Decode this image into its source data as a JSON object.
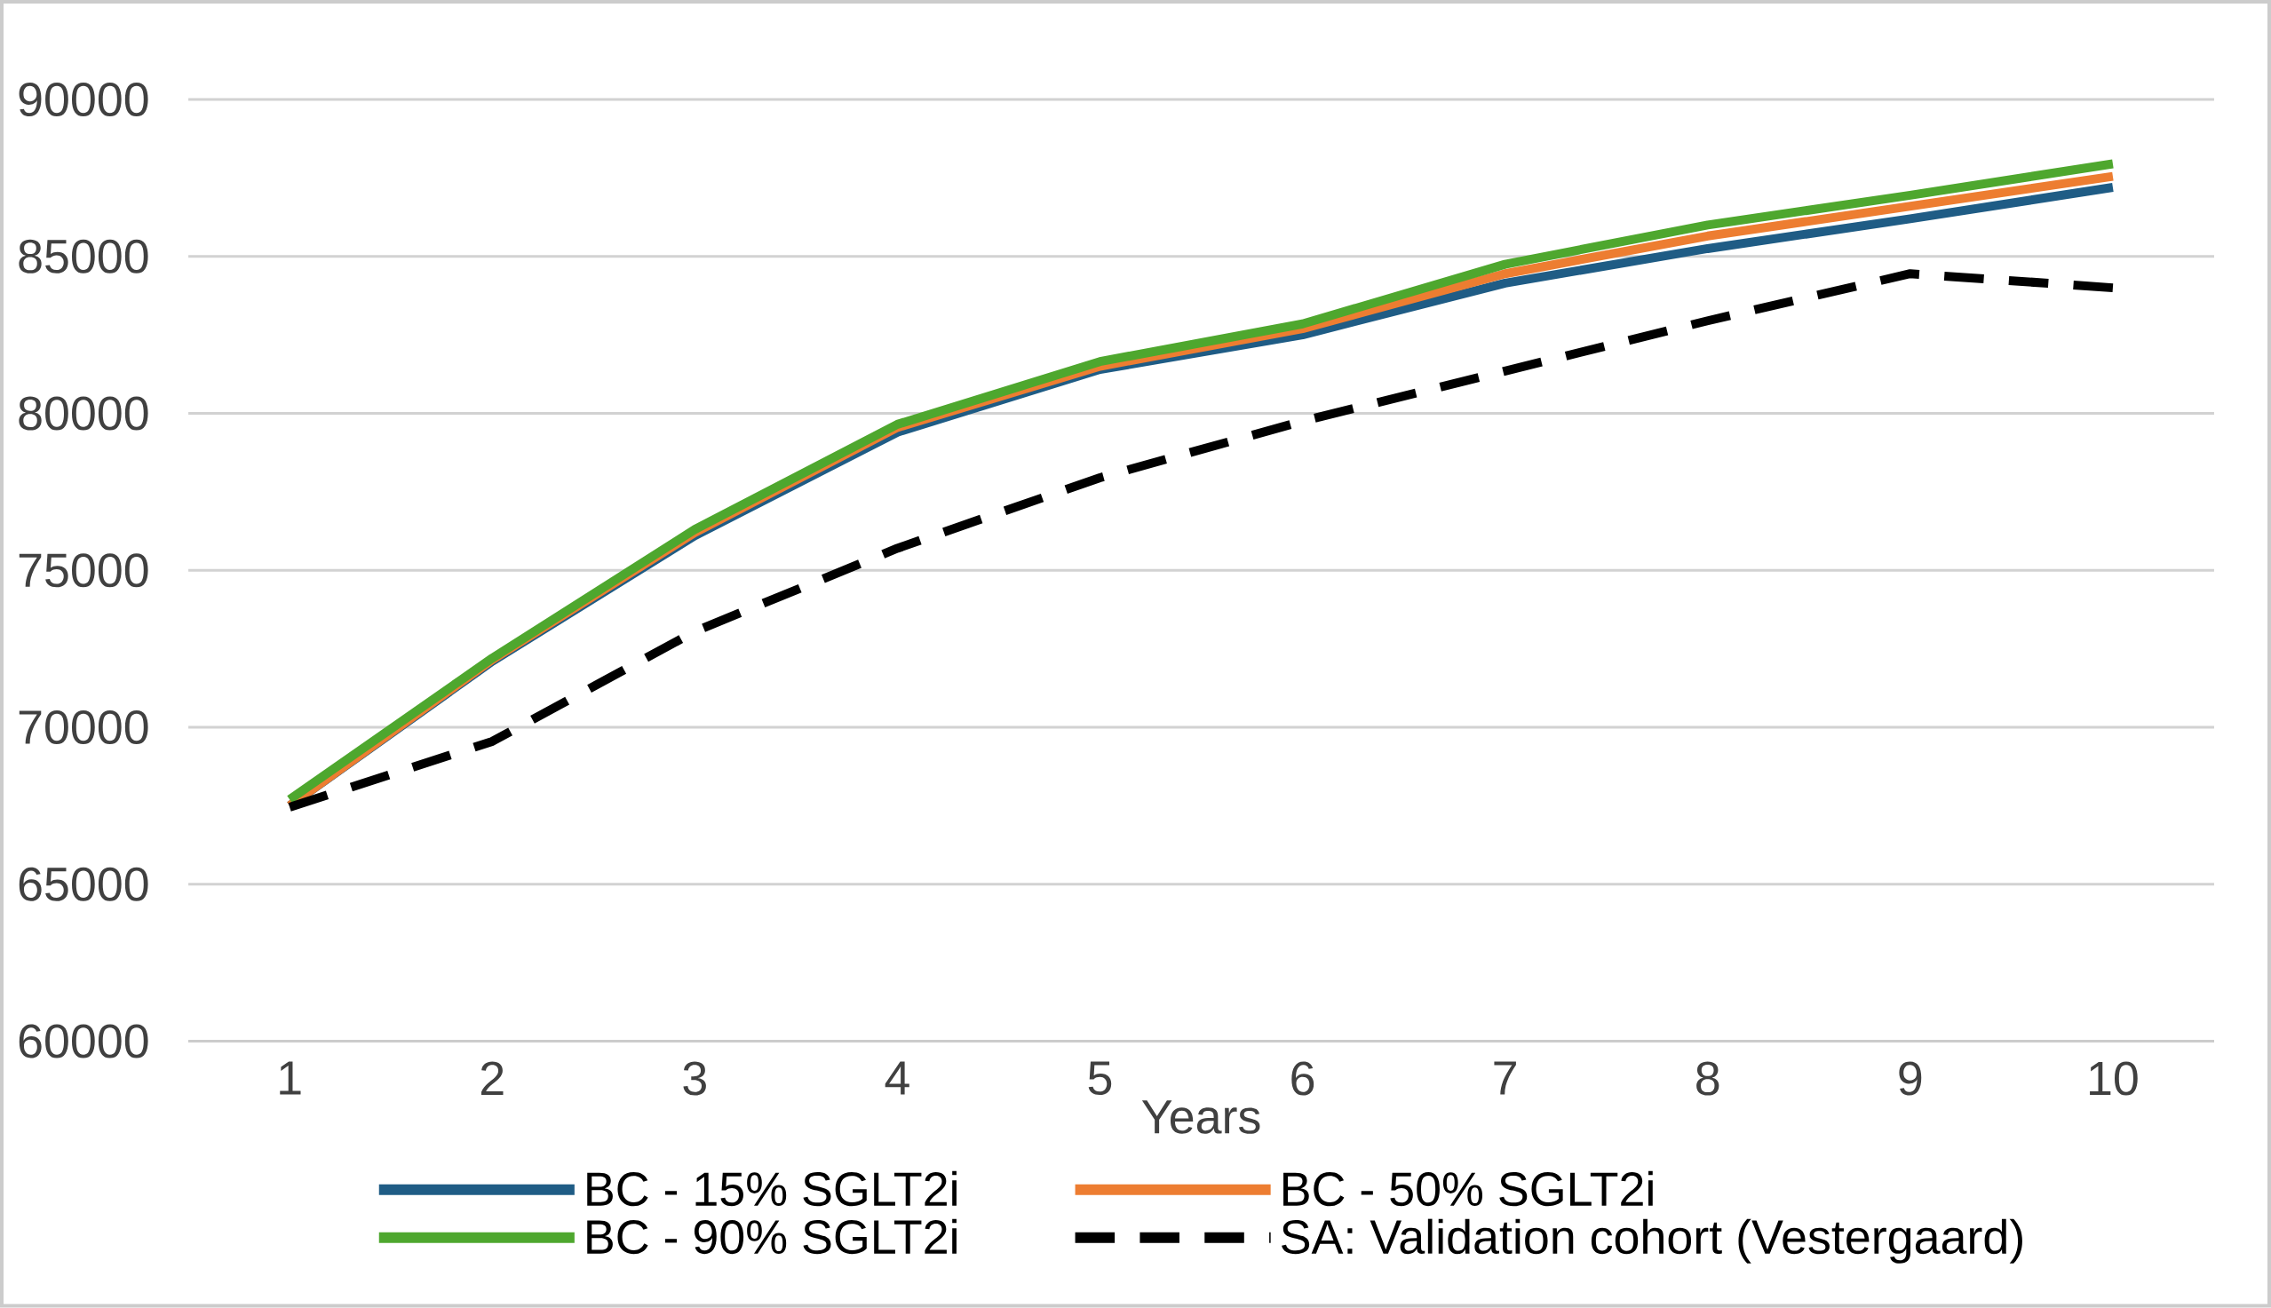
{
  "chart_data": {
    "type": "line",
    "xlabel": "Years",
    "categories": [
      "1",
      "2",
      "3",
      "4",
      "5",
      "6",
      "7",
      "8",
      "9",
      "10"
    ],
    "series": [
      {
        "name": "BC - 15% SGLT2i",
        "color": "#1f5c85",
        "line_style": "solid",
        "values": [
          67500,
          72100,
          76100,
          79400,
          81400,
          82500,
          84150,
          85250,
          86200,
          87200
        ]
      },
      {
        "name": "BC - 50% SGLT2i",
        "color": "#ed7d31",
        "line_style": "solid",
        "values": [
          67500,
          72150,
          76200,
          79550,
          81500,
          82700,
          84450,
          85650,
          86600,
          87550
        ]
      },
      {
        "name": "BC - 90% SGLT2i",
        "color": "#4ea72e",
        "line_style": "solid",
        "values": [
          67700,
          72200,
          76300,
          79650,
          81650,
          82850,
          84750,
          86000,
          86950,
          87950
        ]
      },
      {
        "name": "SA: Validation cohort (Vestergaard)",
        "color": "#000000",
        "line_style": "dashed",
        "values": [
          67450,
          69550,
          73050,
          75700,
          77950,
          79750,
          81350,
          82950,
          84450,
          84000
        ]
      }
    ],
    "ylim": [
      60000,
      90000
    ],
    "yticks": [
      60000,
      65000,
      70000,
      75000,
      80000,
      85000,
      90000
    ],
    "grid": "y",
    "legend": "bottom",
    "marker": "none"
  }
}
